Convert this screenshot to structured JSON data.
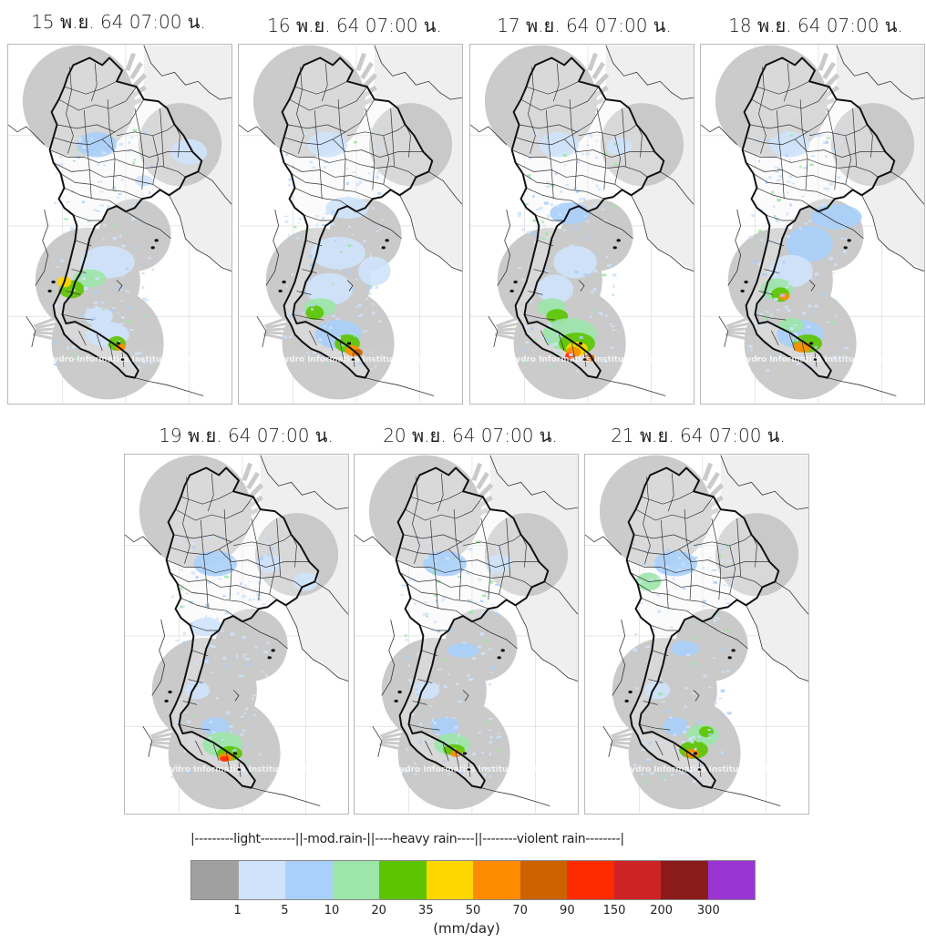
{
  "panels": [
    {
      "date_label": "15 พ.ย. 64 07:00 น.",
      "watermark": "Hydro Informatics Institute (HII)"
    },
    {
      "date_label": "16 พ.ย. 64 07:00 น.",
      "watermark": "Hydro Informatics Institute (HII)"
    },
    {
      "date_label": "17 พ.ย. 64 07:00 น.",
      "watermark": "Hydro Informatics Institute (HII)"
    },
    {
      "date_label": "18 พ.ย. 64 07:00 น.",
      "watermark": "Hydro Informatics Institute (HII)"
    },
    {
      "date_label": "19 พ.ย. 64 07:00 น.",
      "watermark": "Hydro Informatics Institute (HII)"
    },
    {
      "date_label": "20 พ.ย. 64 07:00 น.",
      "watermark": "Hydro Informatics Institute (HII)"
    },
    {
      "date_label": "21 พ.ย. 64 07:00 น.",
      "watermark": "Hydro Informatics Institute (HII)"
    }
  ],
  "legend": {
    "title": "|---------light--------||-mod.rain-||----heavy rain----||--------violent rain--------|",
    "colors": [
      "#a0a0a0",
      "#cfe3fb",
      "#a9cffb",
      "#9be6a8",
      "#5cc400",
      "#ffd700",
      "#ff8c00",
      "#cc6200",
      "#ff2b00",
      "#cc2424",
      "#8b1a1a",
      "#9a35d4"
    ],
    "ticks": [
      "1",
      "5",
      "10",
      "20",
      "35",
      "50",
      "70",
      "90",
      "150",
      "200",
      "300"
    ],
    "unit": "(mm/day)"
  },
  "map_style": {
    "radar_coverage_color": "#c8c8c8",
    "outside_color": "#efefef",
    "boundary_color": "#111111",
    "gridline_color": "#d6d6d6"
  }
}
